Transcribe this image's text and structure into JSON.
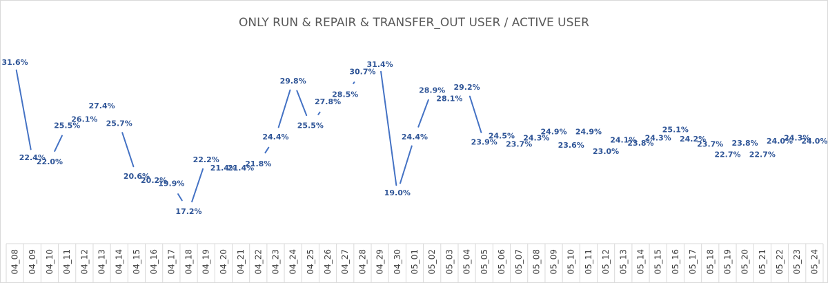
{
  "chart_data": {
    "type": "line",
    "title": "ONLY RUN & REPAIR & TRANSFER_OUT USER / ACTIVE USER",
    "xlabel": "",
    "ylabel": "",
    "grid": false,
    "legend": "none",
    "categories": [
      "04_08",
      "04_09",
      "04_10",
      "04_11",
      "04_12",
      "04_13",
      "04_14",
      "04_15",
      "04_16",
      "04_17",
      "04_18",
      "04_19",
      "04_20",
      "04_21",
      "04_22",
      "04_23",
      "04_24",
      "04_25",
      "04_26",
      "04_27",
      "04_28",
      "04_29",
      "04_30",
      "05_01",
      "05_02",
      "05_03",
      "05_04",
      "05_05",
      "05_06",
      "05_07",
      "05_08",
      "05_09",
      "05_10",
      "05_11",
      "05_12",
      "05_13",
      "05_14",
      "05_15",
      "05_16",
      "05_17",
      "05_18",
      "05_19",
      "05_20",
      "05_21",
      "05_22",
      "05_23",
      "05_24"
    ],
    "values": [
      31.6,
      22.4,
      22.0,
      25.5,
      26.1,
      27.4,
      25.7,
      20.6,
      20.2,
      19.9,
      17.2,
      22.2,
      21.4,
      21.4,
      21.8,
      24.4,
      29.8,
      25.5,
      27.8,
      28.5,
      30.7,
      31.4,
      19.0,
      24.4,
      28.9,
      28.1,
      29.2,
      23.9,
      24.5,
      23.7,
      24.3,
      24.9,
      23.6,
      24.9,
      23.0,
      24.1,
      23.8,
      24.3,
      25.1,
      24.2,
      23.7,
      22.7,
      23.8,
      22.7,
      24.0,
      24.3,
      24.0
    ],
    "value_labels": [
      "31.6%",
      "22.4%",
      "22.0%",
      "25.5%",
      "26.1%",
      "27.4%",
      "25.7%",
      "20.6%",
      "20.2%",
      "19.9%",
      "17.2%",
      "22.2%",
      "21.4%",
      "21.4%",
      "21.8%",
      "24.4%",
      "29.8%",
      "25.5%",
      "27.8%",
      "28.5%",
      "30.7%",
      "31.4%",
      "19.0%",
      "24.4%",
      "28.9%",
      "28.1%",
      "29.2%",
      "23.9%",
      "24.5%",
      "23.7%",
      "24.3%",
      "24.9%",
      "23.6%",
      "24.9%",
      "23.0%",
      "24.1%",
      "23.8%",
      "24.3%",
      "25.1%",
      "24.2%",
      "23.7%",
      "22.7%",
      "23.8%",
      "22.7%",
      "24.0%",
      "24.3%",
      "24.0%"
    ],
    "ylim": [
      15,
      33
    ],
    "colors": {
      "line": "#4472c4",
      "labels": "#2f5597"
    }
  }
}
